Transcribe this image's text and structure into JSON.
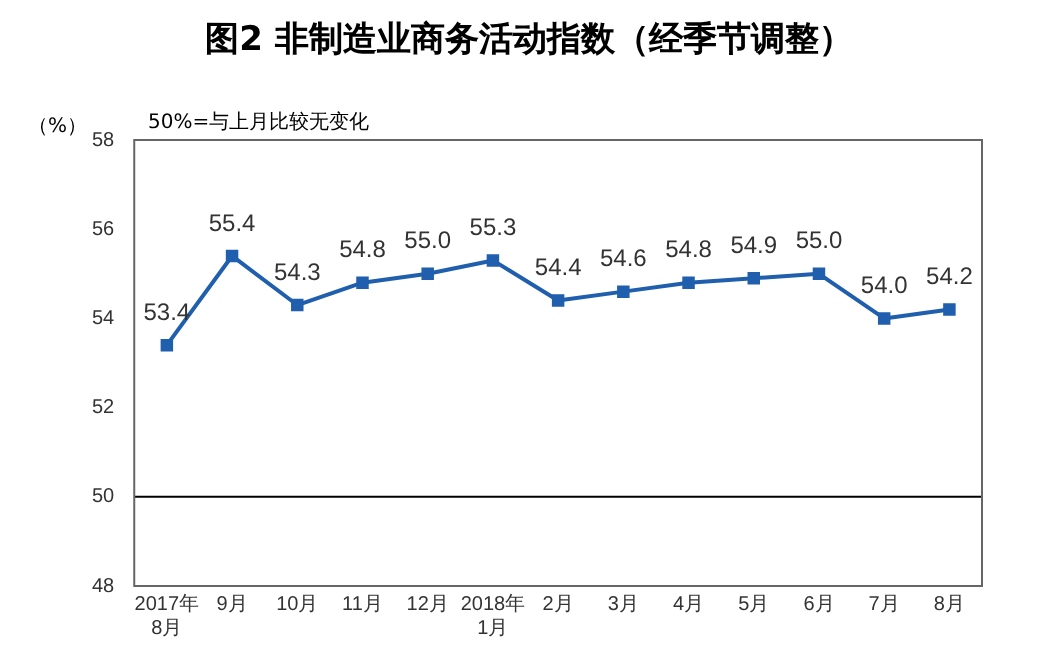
{
  "chart_data": {
    "type": "line",
    "title": "图2 非制造业商务活动指数（经季节调整）",
    "ylabel": "（%）",
    "annotations": [
      "50%=与上月比较无变化"
    ],
    "categories": [
      "2017年\n8月",
      "9月",
      "10月",
      "11月",
      "12月",
      "2018年\n1月",
      "2月",
      "3月",
      "4月",
      "5月",
      "6月",
      "7月",
      "8月"
    ],
    "series": [
      {
        "color": "#1f5fad",
        "values": [
          53.4,
          55.4,
          54.3,
          54.8,
          55.0,
          55.3,
          54.4,
          54.6,
          54.8,
          54.9,
          55.0,
          54.0,
          54.2
        ],
        "value_labels": [
          "53.4",
          "55.4",
          "54.3",
          "54.8",
          "55.0",
          "55.3",
          "54.4",
          "54.6",
          "54.8",
          "54.9",
          "55.0",
          "54.0",
          "54.2"
        ]
      }
    ],
    "ylim": [
      48,
      58
    ],
    "yticks": [
      48,
      50,
      52,
      54,
      56,
      58
    ],
    "ref_lines": [
      {
        "axis": "y",
        "value": 50,
        "color": "#000000"
      }
    ],
    "marker": "square",
    "grid": false,
    "legend": false
  }
}
